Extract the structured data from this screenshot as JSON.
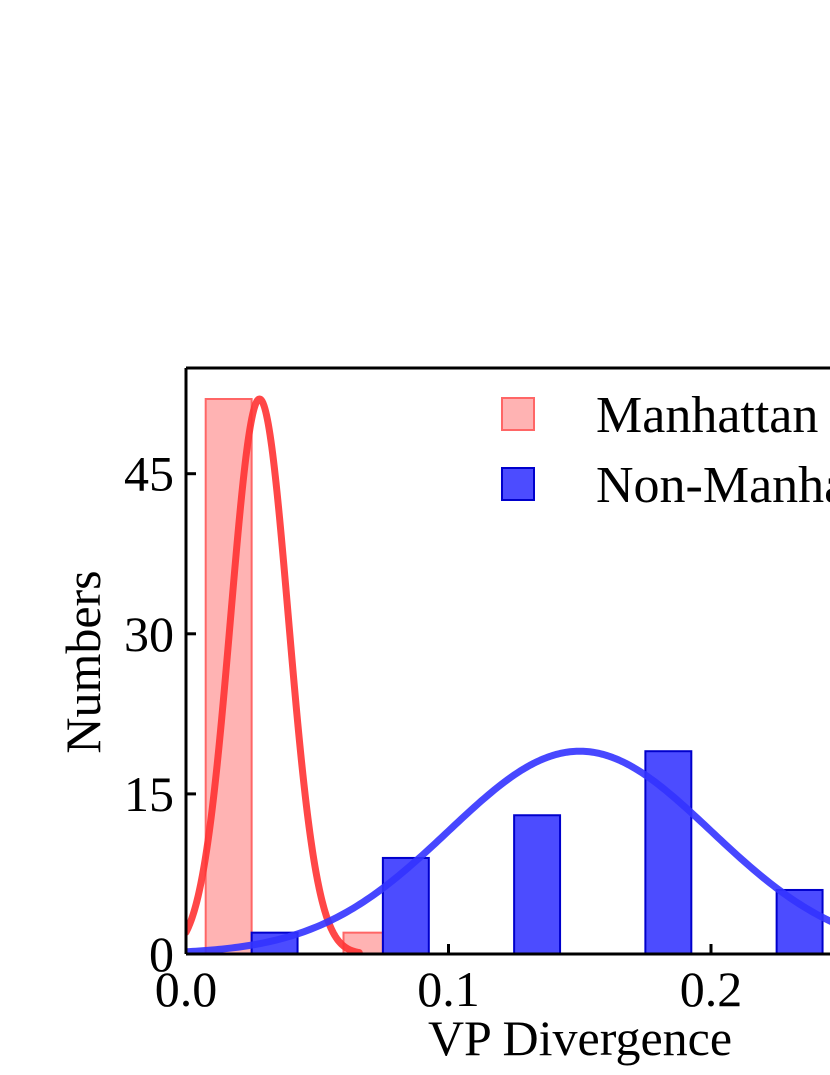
{
  "chart_data": {
    "type": "bar",
    "xlabel": "VP Divergence",
    "ylabel": "Numbers",
    "xlim": [
      0.0,
      0.25
    ],
    "ylim": [
      0,
      52
    ],
    "xticks": [
      0.0,
      0.1,
      0.2
    ],
    "xtick_labels": [
      "0.0",
      "0.1",
      "0.2"
    ],
    "yticks": [
      0,
      15,
      30,
      45
    ],
    "ytick_labels": [
      "0",
      "15",
      "30",
      "45"
    ],
    "grid": false,
    "legend_position": "top-right",
    "series": [
      {
        "name": "Manhattan",
        "kind": "histogram",
        "color": "#ff8080",
        "bins": [
          {
            "x0": 0.0075,
            "x1": 0.025,
            "value": 52
          },
          {
            "x0": 0.025,
            "x1": 0.0425,
            "value": 0
          },
          {
            "x0": 0.0425,
            "x1": 0.06,
            "value": 0
          },
          {
            "x0": 0.06,
            "x1": 0.075,
            "value": 2
          }
        ],
        "fit_curve": {
          "type": "normal",
          "mean": 0.028,
          "std": 0.011,
          "peak": 52,
          "x_range": [
            0.0,
            0.066
          ],
          "color": "#ff3333"
        }
      },
      {
        "name": "Non-Manhattan",
        "kind": "histogram",
        "color": "#0000ff",
        "bins": [
          {
            "x0": 0.025,
            "x1": 0.0425,
            "value": 2
          },
          {
            "x0": 0.075,
            "x1": 0.0925,
            "value": 9
          },
          {
            "x0": 0.125,
            "x1": 0.1425,
            "value": 13
          },
          {
            "x0": 0.175,
            "x1": 0.1925,
            "value": 19
          },
          {
            "x0": 0.225,
            "x1": 0.2425,
            "value": 6
          }
        ],
        "fit_curve": {
          "type": "normal",
          "mean": 0.15,
          "std": 0.05,
          "peak": 19,
          "x_range": [
            0.0,
            0.25
          ],
          "color": "#3333ff"
        }
      }
    ]
  }
}
